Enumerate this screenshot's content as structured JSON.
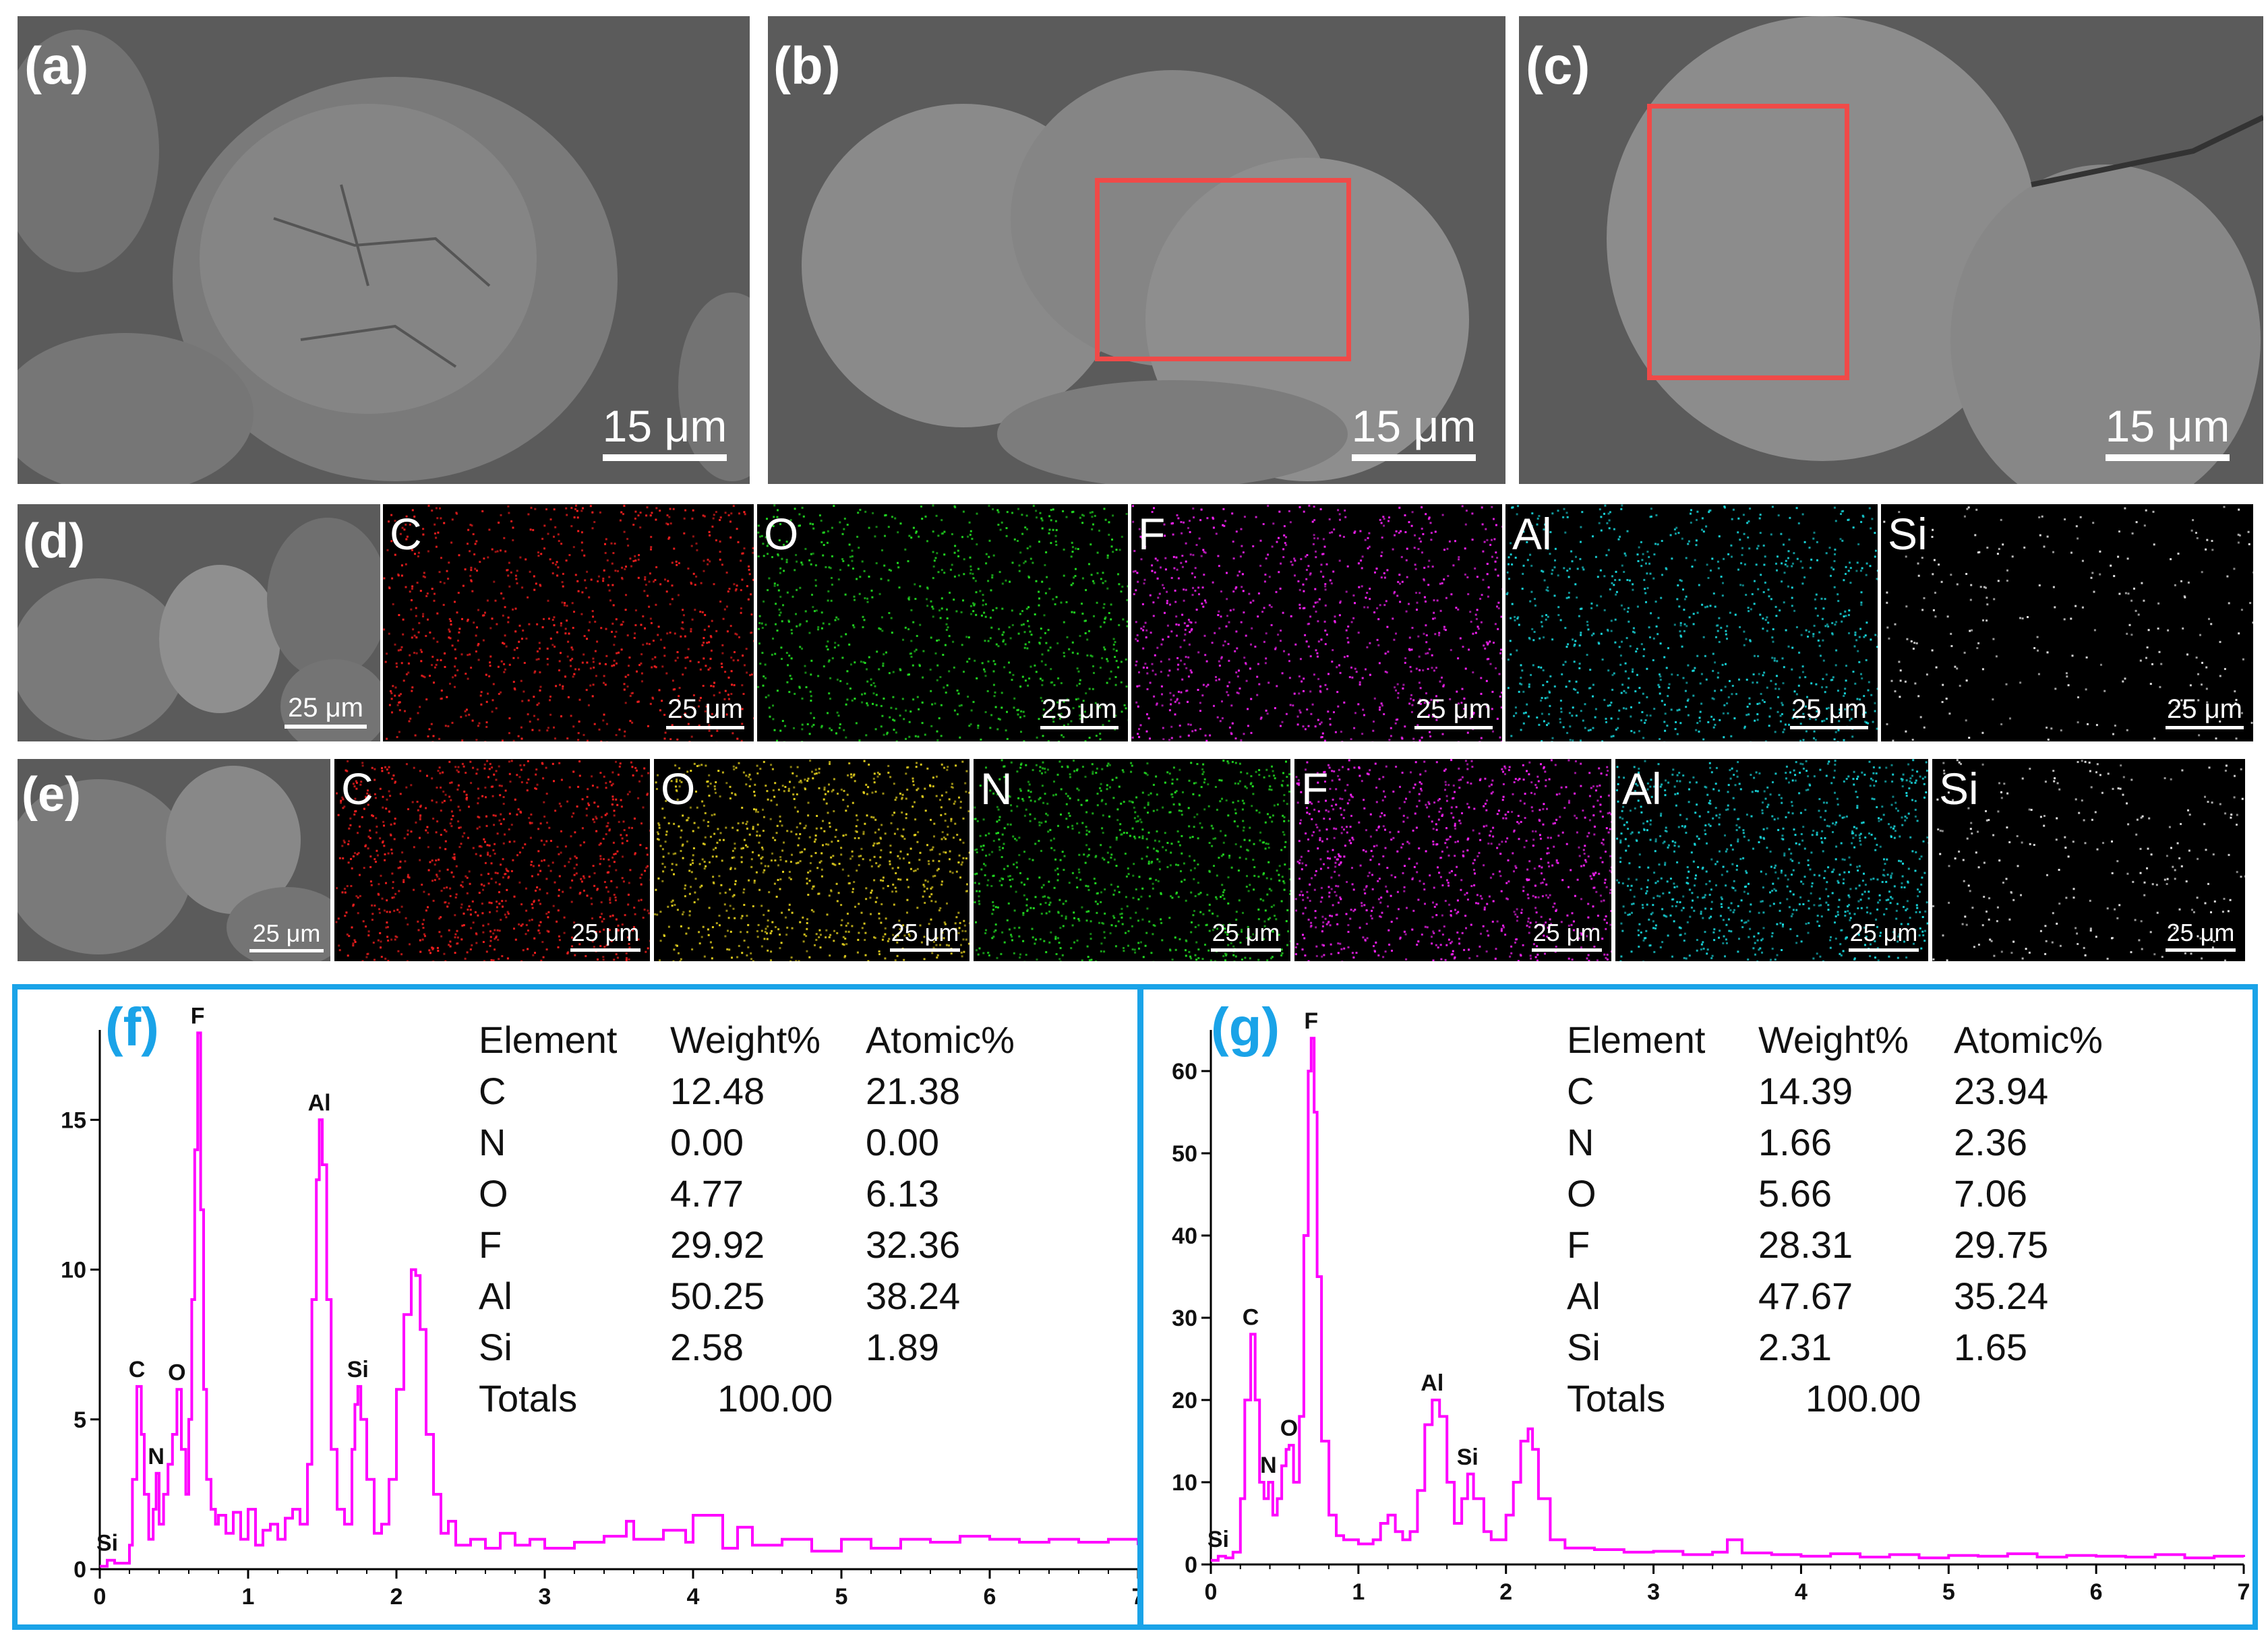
{
  "colors": {
    "highlight_box": "#f04a48",
    "chart_border": "#1aa3e8",
    "spectrum": "#ff00ff",
    "panel_label": "#1aa3e8"
  },
  "sem_panels": [
    {
      "label": "(a)",
      "scale": "15 μm"
    },
    {
      "label": "(b)",
      "scale": "15 μm"
    },
    {
      "label": "(c)",
      "scale": "15 μm"
    }
  ],
  "row_d": {
    "label": "(d)",
    "sem_scale": "25 μm",
    "maps": [
      {
        "element": "C",
        "color": "#ff2020",
        "scale": "25 μm"
      },
      {
        "element": "O",
        "color": "#22dd22",
        "scale": "25 μm"
      },
      {
        "element": "F",
        "color": "#ff22ff",
        "scale": "25 μm"
      },
      {
        "element": "Al",
        "color": "#18d8dd",
        "scale": "25 μm"
      },
      {
        "element": "Si",
        "color": "#e8e8e8",
        "scale": "25 μm"
      }
    ]
  },
  "row_e": {
    "label": "(e)",
    "sem_scale": "25 μm",
    "maps": [
      {
        "element": "C",
        "color": "#ff2020",
        "scale": "25 μm"
      },
      {
        "element": "O",
        "color": "#e6d21e",
        "scale": "25 μm"
      },
      {
        "element": "N",
        "color": "#22dd22",
        "scale": "25 μm"
      },
      {
        "element": "F",
        "color": "#ff22ff",
        "scale": "25 μm"
      },
      {
        "element": "Al",
        "color": "#18d8dd",
        "scale": "25 μm"
      },
      {
        "element": "Si",
        "color": "#e8e8e8",
        "scale": "25 μm"
      }
    ]
  },
  "chart_data": [
    {
      "type": "line",
      "panel": "(f)",
      "xlim": [
        0,
        7
      ],
      "ylim": [
        0,
        18
      ],
      "xticks": [
        "0",
        "1",
        "2",
        "3",
        "4",
        "5",
        "6",
        "7"
      ],
      "yticks": [
        "0",
        "5",
        "10",
        "15"
      ],
      "peaks": [
        {
          "label": "Si",
          "x": 0.05,
          "y": 0.3
        },
        {
          "label": "C",
          "x": 0.25,
          "y": 6.1
        },
        {
          "label": "N",
          "x": 0.38,
          "y": 3.2
        },
        {
          "label": "O",
          "x": 0.52,
          "y": 6.0
        },
        {
          "label": "F",
          "x": 0.66,
          "y": 17.9
        },
        {
          "label": "Al",
          "x": 1.48,
          "y": 15.0
        },
        {
          "label": "Si",
          "x": 1.74,
          "y": 6.1
        }
      ],
      "series": [
        {
          "x": [
            0,
            0.05,
            0.1,
            0.15,
            0.2,
            0.22,
            0.25,
            0.28,
            0.3,
            0.33,
            0.36,
            0.38,
            0.4,
            0.43,
            0.46,
            0.49,
            0.52,
            0.55,
            0.58,
            0.6,
            0.62,
            0.64,
            0.66,
            0.68,
            0.7,
            0.72,
            0.75,
            0.78,
            0.8,
            0.85,
            0.9,
            0.95,
            1.0,
            1.05,
            1.1,
            1.15,
            1.2,
            1.25,
            1.3,
            1.35,
            1.4,
            1.43,
            1.46,
            1.48,
            1.5,
            1.53,
            1.56,
            1.6,
            1.65,
            1.7,
            1.72,
            1.74,
            1.76,
            1.8,
            1.85,
            1.9,
            1.95,
            2.0,
            2.05,
            2.1,
            2.13,
            2.16,
            2.2,
            2.25,
            2.3,
            2.35,
            2.4,
            2.5,
            2.6,
            2.7,
            2.8,
            2.9,
            3.0,
            3.2,
            3.4,
            3.55,
            3.6,
            3.8,
            3.95,
            4.0,
            4.2,
            4.3,
            4.4,
            4.6,
            4.8,
            5.0,
            5.2,
            5.4,
            5.6,
            5.8,
            6.0,
            6.2,
            6.4,
            6.6,
            6.8,
            7.0
          ],
          "y": [
            0.1,
            0.3,
            0.2,
            0.2,
            0.8,
            3.0,
            6.1,
            4.5,
            2.5,
            1.0,
            2.0,
            3.2,
            1.5,
            2.5,
            3.5,
            4.5,
            6.0,
            4.0,
            2.5,
            5.0,
            9.0,
            14.0,
            17.9,
            12.0,
            6.0,
            3.0,
            2.0,
            1.5,
            1.8,
            1.2,
            1.9,
            1.0,
            2.0,
            0.8,
            1.3,
            1.5,
            1.0,
            1.7,
            2.0,
            1.5,
            3.5,
            9.0,
            13.0,
            15.0,
            13.5,
            9.0,
            4.0,
            2.0,
            1.5,
            4.0,
            5.5,
            6.1,
            5.0,
            3.0,
            1.2,
            1.5,
            3.0,
            6.0,
            8.5,
            10.0,
            9.8,
            8.0,
            4.5,
            2.5,
            1.2,
            1.6,
            0.8,
            1.0,
            0.7,
            1.2,
            0.8,
            1.0,
            0.7,
            0.9,
            1.1,
            1.6,
            1.0,
            1.3,
            0.9,
            1.8,
            0.7,
            1.4,
            0.8,
            1.0,
            0.6,
            1.0,
            0.7,
            1.0,
            0.9,
            1.1,
            1.0,
            0.9,
            1.0,
            0.9,
            1.0,
            0.8
          ]
        }
      ],
      "table": {
        "headers": [
          "Element",
          "Weight%",
          "Atomic%"
        ],
        "rows": [
          [
            "C",
            "12.48",
            "21.38"
          ],
          [
            "N",
            "0.00",
            "0.00"
          ],
          [
            "O",
            "4.77",
            "6.13"
          ],
          [
            "F",
            "29.92",
            "32.36"
          ],
          [
            "Al",
            "50.25",
            "38.24"
          ],
          [
            "Si",
            "2.58",
            "1.89"
          ]
        ],
        "totals_label": "Totals",
        "totals_value": "100.00"
      }
    },
    {
      "type": "line",
      "panel": "(g)",
      "xlim": [
        0,
        7
      ],
      "ylim": [
        0,
        65
      ],
      "xticks": [
        "0",
        "1",
        "2",
        "3",
        "4",
        "5",
        "6",
        "7"
      ],
      "yticks": [
        "0",
        "10",
        "20",
        "30",
        "40",
        "50",
        "60"
      ],
      "peaks": [
        {
          "label": "Si",
          "x": 0.05,
          "y": 1.0
        },
        {
          "label": "C",
          "x": 0.27,
          "y": 28.0
        },
        {
          "label": "N",
          "x": 0.39,
          "y": 10.0
        },
        {
          "label": "O",
          "x": 0.53,
          "y": 14.5
        },
        {
          "label": "F",
          "x": 0.68,
          "y": 64.0
        },
        {
          "label": "Al",
          "x": 1.5,
          "y": 20.0
        },
        {
          "label": "Si",
          "x": 1.74,
          "y": 11.0
        }
      ],
      "series": [
        {
          "x": [
            0,
            0.05,
            0.1,
            0.15,
            0.2,
            0.23,
            0.27,
            0.3,
            0.33,
            0.36,
            0.39,
            0.42,
            0.45,
            0.48,
            0.51,
            0.53,
            0.56,
            0.6,
            0.63,
            0.66,
            0.68,
            0.7,
            0.72,
            0.75,
            0.8,
            0.85,
            0.9,
            1.0,
            1.1,
            1.15,
            1.2,
            1.25,
            1.3,
            1.35,
            1.4,
            1.45,
            1.5,
            1.55,
            1.6,
            1.65,
            1.7,
            1.74,
            1.78,
            1.85,
            1.9,
            2.0,
            2.05,
            2.1,
            2.15,
            2.18,
            2.22,
            2.3,
            2.4,
            2.6,
            2.8,
            3.0,
            3.2,
            3.4,
            3.5,
            3.6,
            3.8,
            4.0,
            4.2,
            4.4,
            4.6,
            4.8,
            5.0,
            5.2,
            5.4,
            5.6,
            5.8,
            6.0,
            6.2,
            6.4,
            6.6,
            6.8,
            7.0
          ],
          "y": [
            0.5,
            1.0,
            0.8,
            1.5,
            8.0,
            20.0,
            28.0,
            20.0,
            10.0,
            8.0,
            10.0,
            6.0,
            8.0,
            12.0,
            14.0,
            14.5,
            10.0,
            18.0,
            40.0,
            60.0,
            64.0,
            55.0,
            35.0,
            15.0,
            6.0,
            3.5,
            3.0,
            2.5,
            3.0,
            5.0,
            6.0,
            4.0,
            3.0,
            4.0,
            9.0,
            17.0,
            20.0,
            18.0,
            10.0,
            5.0,
            8.0,
            11.0,
            8.0,
            4.0,
            3.0,
            6.0,
            10.0,
            15.0,
            16.5,
            14.0,
            8.0,
            3.0,
            2.0,
            1.8,
            1.5,
            1.6,
            1.2,
            1.5,
            3.0,
            1.4,
            1.2,
            1.0,
            1.3,
            0.9,
            1.2,
            0.8,
            1.1,
            1.0,
            1.3,
            0.9,
            1.1,
            1.0,
            0.9,
            1.2,
            0.8,
            1.0,
            0.9
          ]
        }
      ],
      "table": {
        "headers": [
          "Element",
          "Weight%",
          "Atomic%"
        ],
        "rows": [
          [
            "C",
            "14.39",
            "23.94"
          ],
          [
            "N",
            "1.66",
            "2.36"
          ],
          [
            "O",
            "5.66",
            "7.06"
          ],
          [
            "F",
            "28.31",
            "29.75"
          ],
          [
            "Al",
            "47.67",
            "35.24"
          ],
          [
            "Si",
            "2.31",
            "1.65"
          ]
        ],
        "totals_label": "Totals",
        "totals_value": "100.00"
      }
    }
  ]
}
